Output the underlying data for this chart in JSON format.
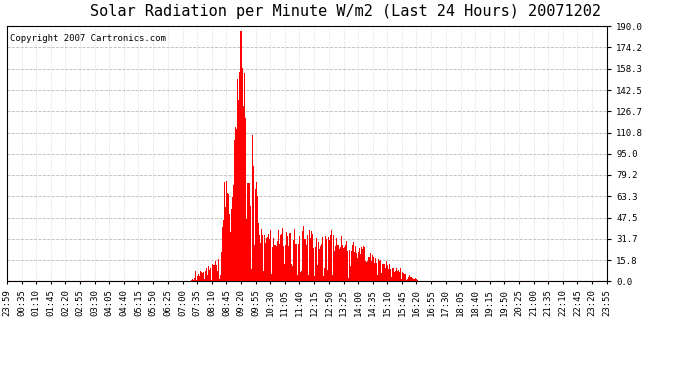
{
  "title": "Solar Radiation per Minute W/m2 (Last 24 Hours) 20071202",
  "copyright_text": "Copyright 2007 Cartronics.com",
  "y_min": 0.0,
  "y_max": 190.0,
  "y_ticks": [
    0.0,
    15.8,
    31.7,
    47.5,
    63.3,
    79.2,
    95.0,
    110.8,
    126.7,
    142.5,
    158.3,
    174.2,
    190.0
  ],
  "bar_color": "#ff0000",
  "background_color": "#ffffff",
  "plot_bg_color": "#ffffff",
  "grid_color": "#bbbbbb",
  "title_fontsize": 11,
  "copyright_fontsize": 6.5,
  "tick_fontsize": 6.5,
  "x_labels": [
    "23:59",
    "00:35",
    "01:10",
    "01:45",
    "02:20",
    "02:55",
    "03:30",
    "04:05",
    "04:40",
    "05:15",
    "05:50",
    "06:25",
    "07:00",
    "07:35",
    "08:10",
    "08:45",
    "09:20",
    "09:55",
    "10:30",
    "11:05",
    "11:40",
    "12:15",
    "12:50",
    "13:25",
    "14:00",
    "14:35",
    "15:10",
    "15:45",
    "16:20",
    "16:55",
    "17:30",
    "18:05",
    "18:40",
    "19:15",
    "19:50",
    "20:25",
    "21:00",
    "21:35",
    "22:10",
    "22:45",
    "23:20",
    "23:55"
  ]
}
